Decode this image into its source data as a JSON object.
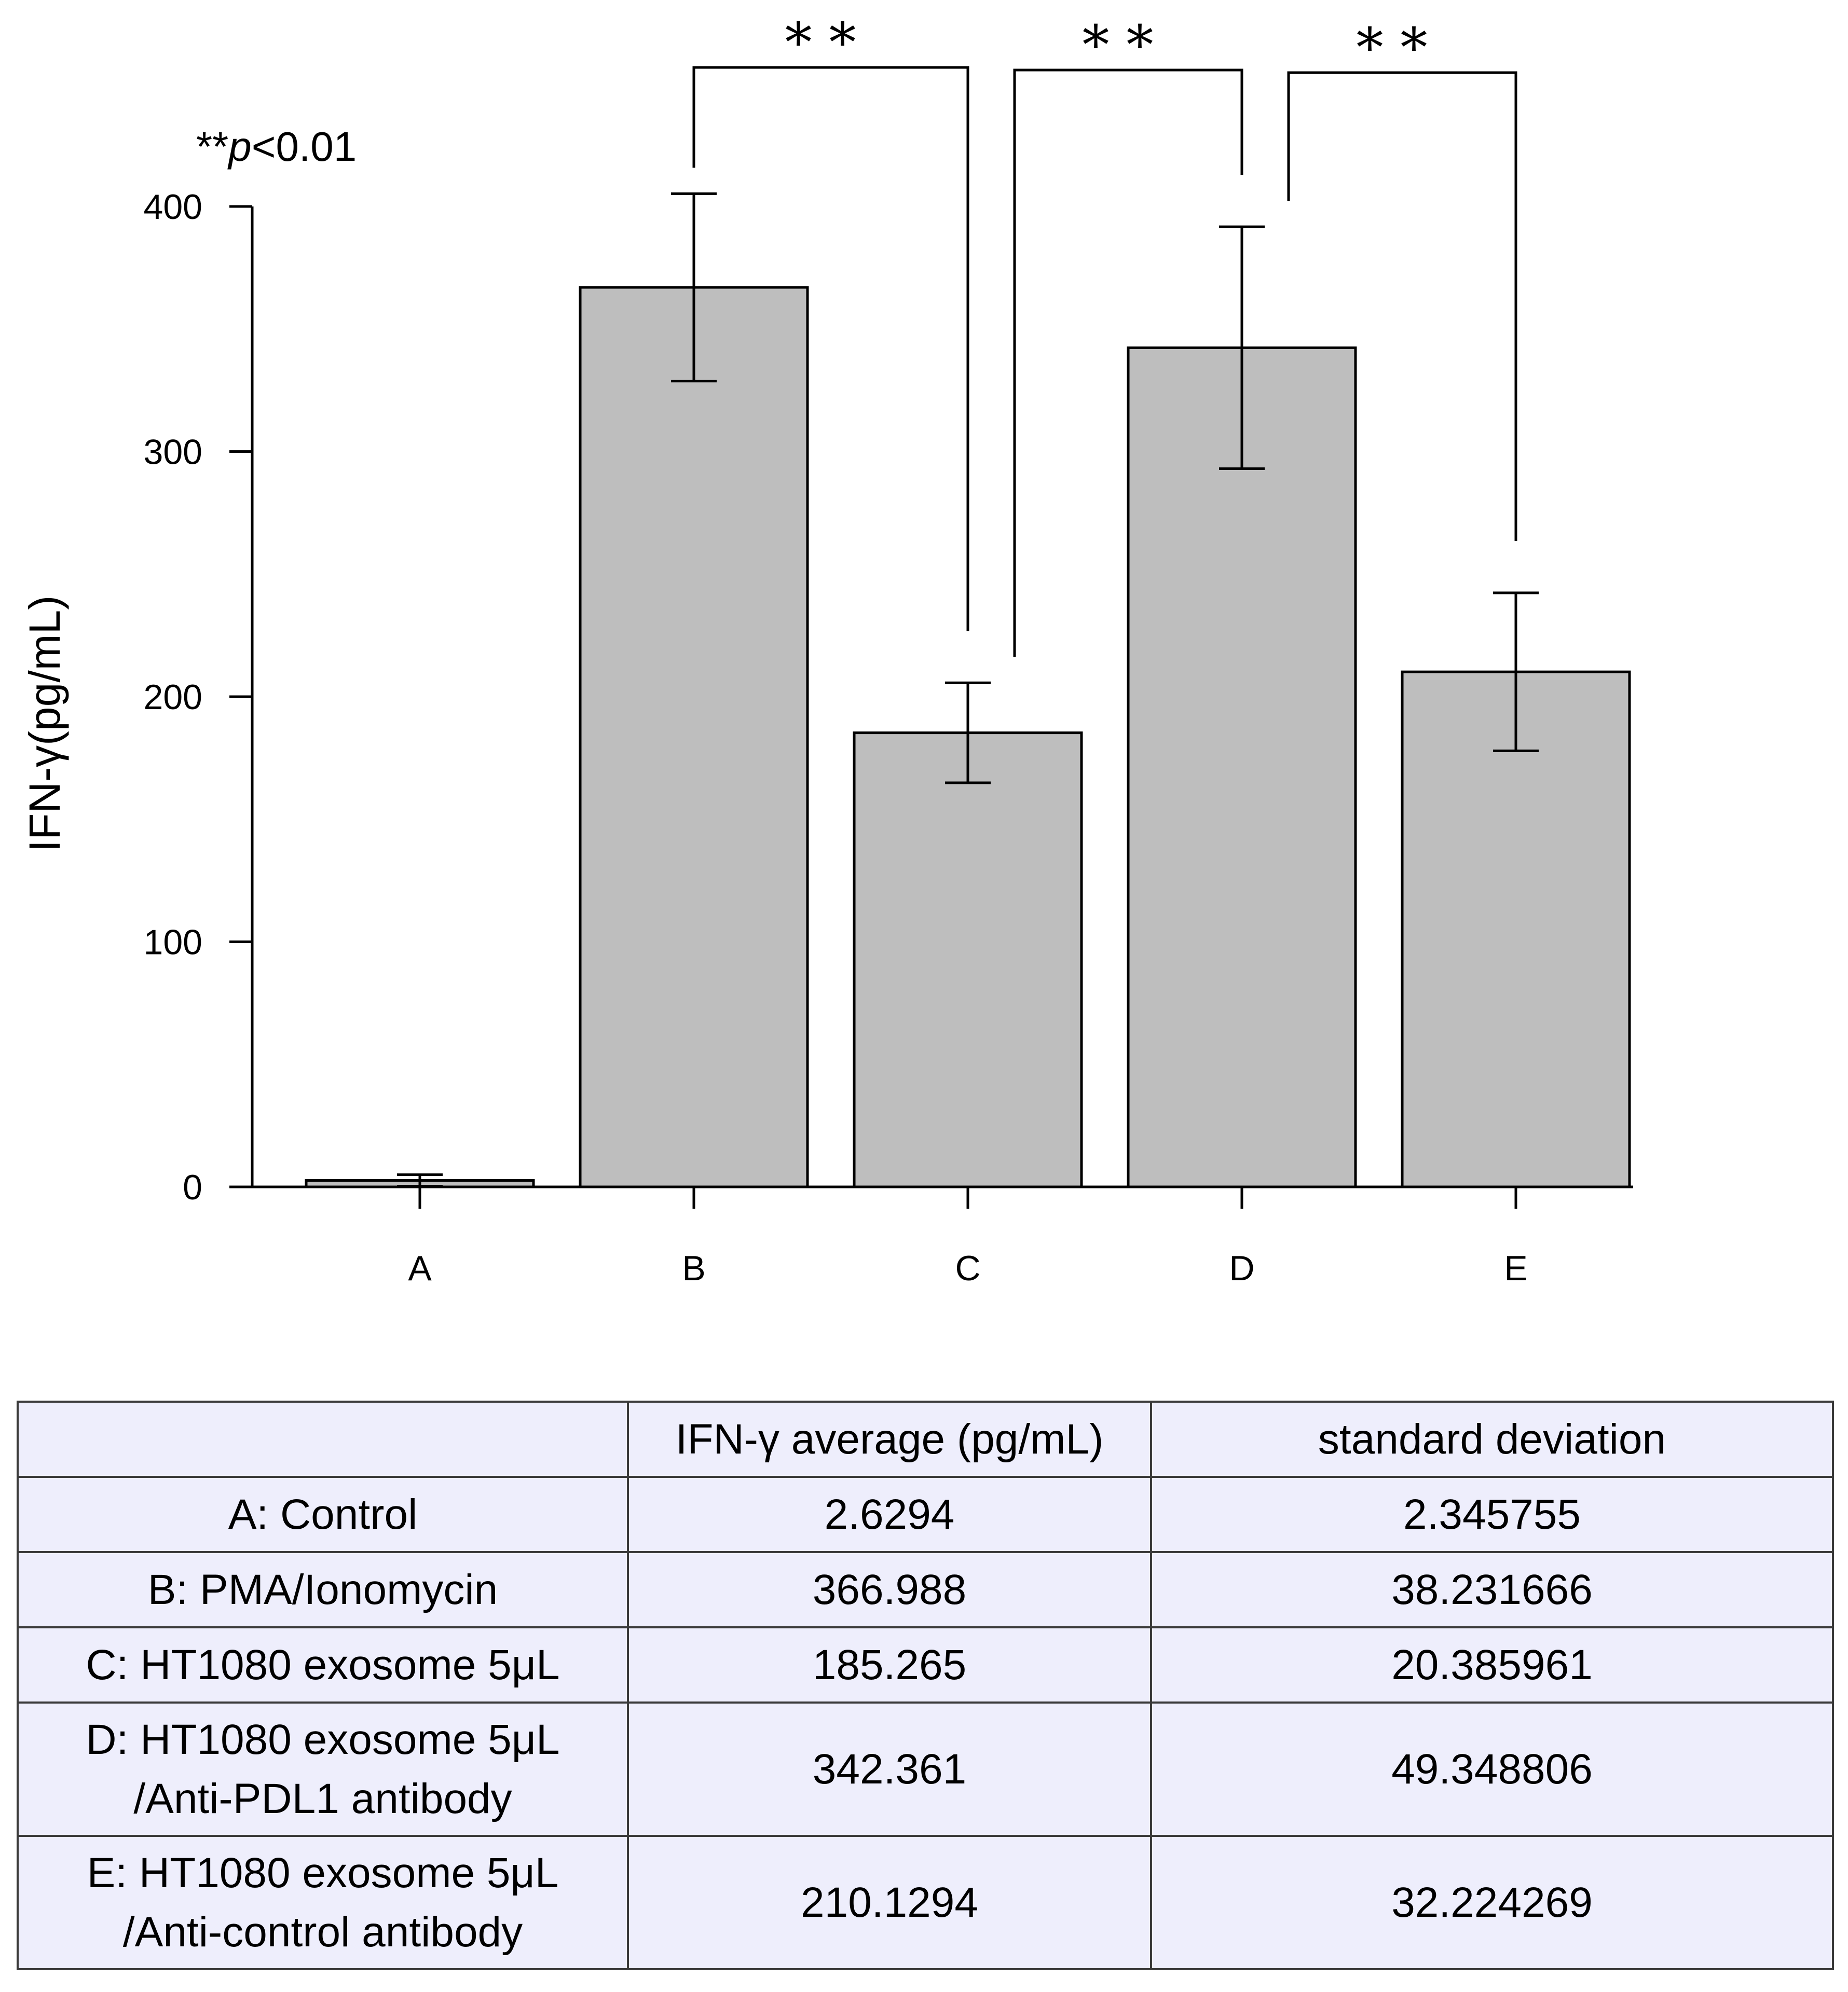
{
  "chart_data": {
    "type": "bar",
    "categories": [
      "A",
      "B",
      "C",
      "D",
      "E"
    ],
    "values": [
      2.6294,
      366.988,
      185.265,
      342.361,
      210.1294
    ],
    "errors": [
      2.345755,
      38.231666,
      20.385961,
      49.348806,
      32.224269
    ],
    "title": "",
    "xlabel": "",
    "ylabel": "IFN-γ(pg/mL)",
    "ylim": [
      0,
      400
    ],
    "yticks": [
      "0",
      "100",
      "200",
      "300",
      "400"
    ],
    "bar_color": "#bebebe",
    "grid": false,
    "significance": [
      {
        "from": "B",
        "to": "C",
        "label": "* *"
      },
      {
        "from": "C",
        "to": "D",
        "label": "* *"
      },
      {
        "from": "D",
        "to": "E",
        "label": "* *"
      }
    ],
    "p_note": {
      "stars": "**",
      "italic": "p",
      "rest": "<0.01"
    }
  },
  "table": {
    "headers": [
      "",
      "IFN-γ average (pg/mL)",
      "standard deviation"
    ],
    "rows": [
      {
        "label": [
          "A: Control"
        ],
        "average": "2.6294",
        "sd": "2.345755"
      },
      {
        "label": [
          "B: PMA/Ionomycin"
        ],
        "average": "366.988",
        "sd": "38.231666"
      },
      {
        "label": [
          "C: HT1080 exosome 5μL"
        ],
        "average": "185.265",
        "sd": "20.385961"
      },
      {
        "label": [
          "D: HT1080 exosome 5μL",
          "/Anti-PDL1 antibody"
        ],
        "average": "342.361",
        "sd": "49.348806"
      },
      {
        "label": [
          "E: HT1080 exosome 5μL",
          "/Anti-control antibody"
        ],
        "average": "210.1294",
        "sd": "32.224269"
      }
    ]
  }
}
